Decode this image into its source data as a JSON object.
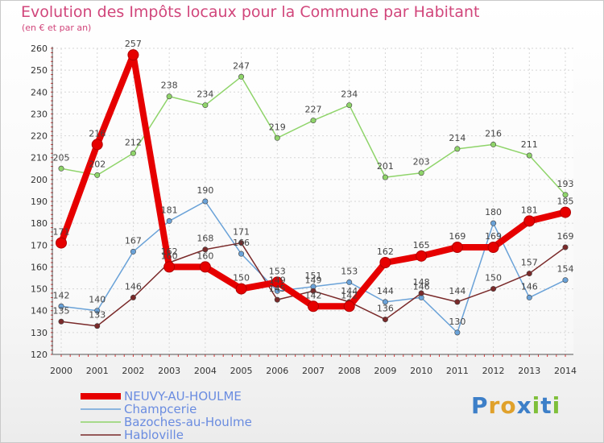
{
  "title": "Evolution des Impôts locaux pour la Commune par Habitant",
  "subtitle": "(en € et par an)",
  "logo_text": "Proxiti",
  "chart_data": {
    "type": "line",
    "x": [
      2000,
      2001,
      2002,
      2003,
      2004,
      2005,
      2006,
      2007,
      2008,
      2009,
      2010,
      2011,
      2012,
      2013,
      2014
    ],
    "ylim": [
      120,
      260
    ],
    "yticks": [
      120,
      130,
      140,
      150,
      160,
      170,
      180,
      190,
      200,
      210,
      220,
      230,
      240,
      250,
      260
    ],
    "grid": true,
    "legend_position": "bottom-left",
    "series": [
      {
        "name": "NEUVY-AU-HOULME",
        "color": "#e60000",
        "values": [
          171,
          216,
          257,
          160,
          160,
          150,
          153,
          142,
          142,
          162,
          165,
          169,
          169,
          181,
          185
        ]
      },
      {
        "name": "Champcerie",
        "color": "#6aa2d8",
        "values": [
          142,
          140,
          167,
          181,
          190,
          166,
          149,
          151,
          153,
          144,
          146,
          130,
          180,
          146,
          154
        ]
      },
      {
        "name": "Bazoches-au-Houlme",
        "color": "#8fd46a",
        "values": [
          205,
          202,
          212,
          238,
          234,
          247,
          219,
          227,
          234,
          201,
          203,
          214,
          216,
          211,
          193
        ]
      },
      {
        "name": "Habloville",
        "color": "#7a2a2a",
        "values": [
          135,
          133,
          146,
          162,
          168,
          171,
          145,
          149,
          144,
          136,
          148,
          144,
          150,
          157,
          169
        ]
      }
    ]
  }
}
